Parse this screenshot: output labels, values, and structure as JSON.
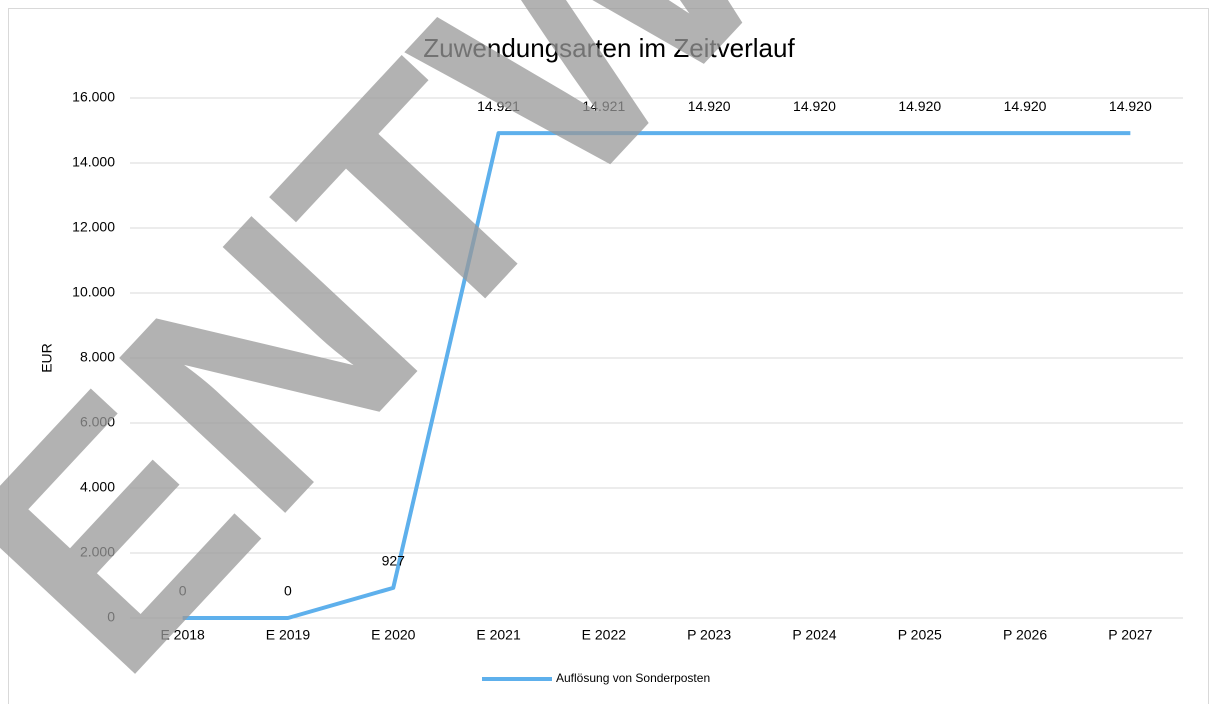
{
  "chart_data": {
    "type": "line",
    "title": "Zuwendungsarten im Zeitverlauf",
    "y_label": "EUR",
    "watermark": "ENTWURF",
    "categories": [
      "E 2018",
      "E 2019",
      "E 2020",
      "E 2021",
      "E 2022",
      "P 2023",
      "P 2024",
      "P 2025",
      "P 2026",
      "P 2027"
    ],
    "series": [
      {
        "name": "Auflösung von Sonderposten",
        "color": "#5eb0ec",
        "values": [
          0,
          0,
          927,
          14921,
          14921,
          14920,
          14920,
          14920,
          14920,
          14920
        ],
        "value_labels": [
          "0",
          "0",
          "927",
          "14.921",
          "14.921",
          "14.920",
          "14.920",
          "14.920",
          "14.920",
          "14.920"
        ]
      }
    ],
    "ylim": [
      0,
      16000
    ],
    "yticks": [
      0,
      {
        "value": 2000,
        "label": "2.000"
      },
      {
        "value": 4000,
        "label": "4.000"
      },
      {
        "value": 6000,
        "label": "6.000"
      },
      {
        "value": 8000,
        "label": "8.000"
      },
      {
        "value": 10000,
        "label": "10.000"
      },
      {
        "value": 12000,
        "label": "12.000"
      },
      {
        "value": 14000,
        "label": "14.000"
      },
      {
        "value": 16000,
        "label": "16.000"
      }
    ],
    "grid": true,
    "legend": "bottom"
  }
}
